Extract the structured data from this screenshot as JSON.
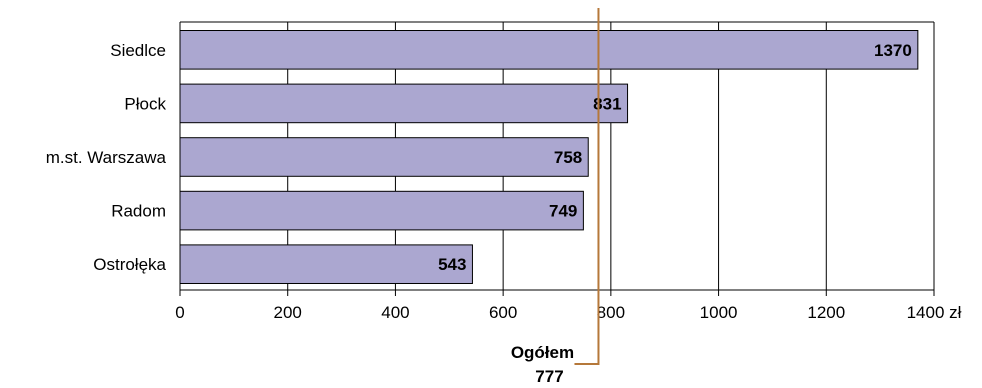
{
  "chart_data": {
    "type": "bar",
    "orientation": "horizontal",
    "categories": [
      "Siedlce",
      "Płock",
      "m.st. Warszawa",
      "Radom",
      "Ostrołęka"
    ],
    "values": [
      1370,
      831,
      758,
      749,
      543
    ],
    "xlim": [
      0,
      1400
    ],
    "x_ticks": [
      0,
      200,
      400,
      600,
      800,
      1000,
      1200,
      1400
    ],
    "x_unit": "zł",
    "grid": true,
    "bar_color": "#aba7d0",
    "reference_line": {
      "label": "Ogółem",
      "value": 777,
      "color": "#b5783a"
    }
  }
}
